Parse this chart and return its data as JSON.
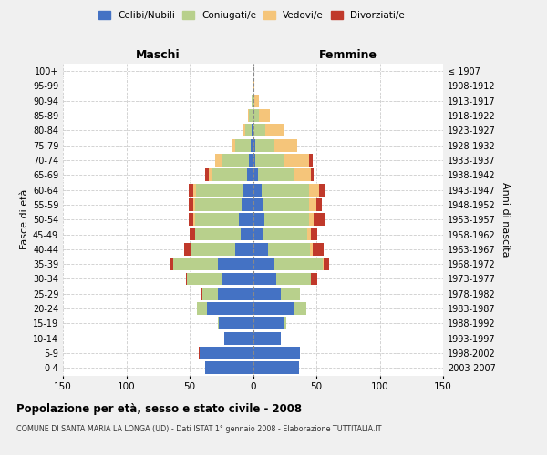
{
  "age_groups": [
    "0-4",
    "5-9",
    "10-14",
    "15-19",
    "20-24",
    "25-29",
    "30-34",
    "35-39",
    "40-44",
    "45-49",
    "50-54",
    "55-59",
    "60-64",
    "65-69",
    "70-74",
    "75-79",
    "80-84",
    "85-89",
    "90-94",
    "95-99",
    "100+"
  ],
  "birth_years": [
    "2003-2007",
    "1998-2002",
    "1993-1997",
    "1988-1992",
    "1983-1987",
    "1978-1982",
    "1973-1977",
    "1968-1972",
    "1963-1967",
    "1958-1962",
    "1953-1957",
    "1948-1952",
    "1943-1947",
    "1938-1942",
    "1933-1937",
    "1928-1932",
    "1923-1927",
    "1918-1922",
    "1913-1917",
    "1908-1912",
    "≤ 1907"
  ],
  "male": {
    "celibi": [
      38,
      42,
      23,
      27,
      36,
      28,
      24,
      28,
      14,
      10,
      11,
      9,
      8,
      5,
      3,
      2,
      1,
      0,
      0,
      0,
      0
    ],
    "coniugati": [
      0,
      0,
      0,
      1,
      8,
      12,
      28,
      35,
      35,
      36,
      35,
      37,
      37,
      28,
      22,
      12,
      5,
      3,
      1,
      0,
      0
    ],
    "vedovi": [
      0,
      0,
      0,
      0,
      0,
      0,
      0,
      0,
      0,
      0,
      1,
      1,
      2,
      2,
      5,
      3,
      2,
      1,
      0,
      0,
      0
    ],
    "divorziati": [
      0,
      1,
      0,
      0,
      0,
      1,
      1,
      2,
      5,
      4,
      4,
      4,
      4,
      3,
      0,
      0,
      0,
      0,
      0,
      0,
      0
    ]
  },
  "female": {
    "nubili": [
      36,
      37,
      22,
      25,
      32,
      22,
      18,
      17,
      12,
      8,
      9,
      8,
      7,
      4,
      2,
      2,
      0,
      0,
      0,
      0,
      0
    ],
    "coniugate": [
      0,
      0,
      0,
      1,
      10,
      15,
      28,
      38,
      33,
      35,
      35,
      36,
      37,
      28,
      23,
      15,
      10,
      5,
      1,
      0,
      0
    ],
    "vedove": [
      0,
      0,
      0,
      0,
      0,
      0,
      0,
      1,
      2,
      3,
      4,
      6,
      8,
      14,
      19,
      18,
      15,
      8,
      4,
      1,
      0
    ],
    "divorziate": [
      0,
      0,
      0,
      0,
      0,
      0,
      5,
      4,
      9,
      5,
      9,
      4,
      5,
      2,
      3,
      0,
      0,
      0,
      0,
      0,
      0
    ]
  },
  "colors": {
    "celibi": "#4472c4",
    "coniugati": "#b8d08c",
    "vedovi": "#f5c57a",
    "divorziati": "#c0392b"
  },
  "legend_labels": [
    "Celibi/Nubili",
    "Coniugati/e",
    "Vedovi/e",
    "Divorziati/e"
  ],
  "title_main": "Popolazione per età, sesso e stato civile - 2008",
  "title_sub": "COMUNE DI SANTA MARIA LA LONGA (UD) - Dati ISTAT 1° gennaio 2008 - Elaborazione TUTTITALIA.IT",
  "xlabel_left": "Maschi",
  "xlabel_right": "Femmine",
  "ylabel_left": "Fasce di età",
  "ylabel_right": "Anni di nascita",
  "xlim": 150,
  "bg_color": "#f0f0f0",
  "plot_bg": "#ffffff",
  "grid_color": "#cccccc"
}
